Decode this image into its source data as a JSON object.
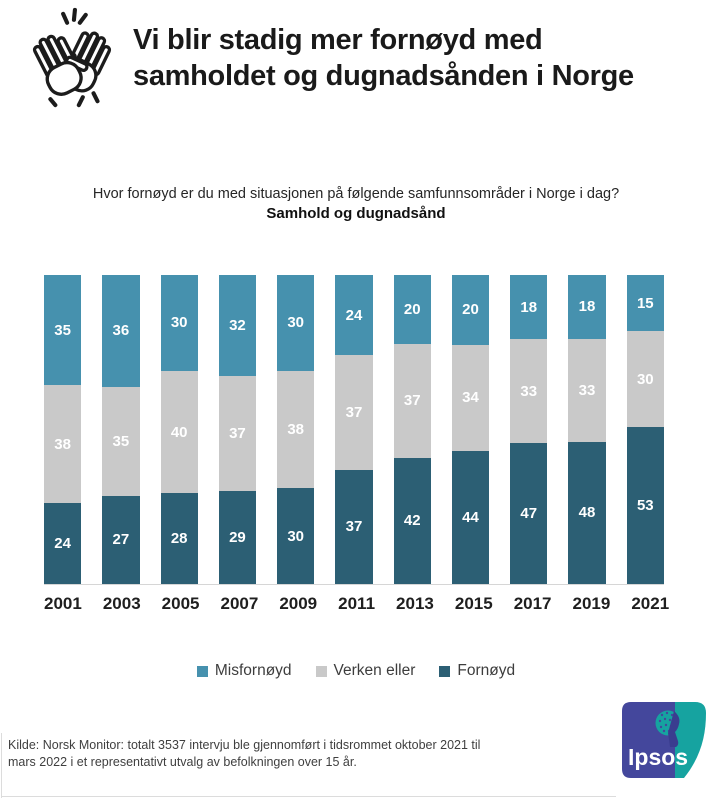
{
  "header": {
    "icon": "high-five-icon",
    "title_line1": "Vi blir stadig mer fornøyd med",
    "title_line2": "samholdet og dugnadsånden i Norge"
  },
  "subtitle": {
    "question": "Hvor fornøyd er du med situasjonen på følgende samfunnsområder i Norge i dag?",
    "topic": "Samhold og dugnadsånd"
  },
  "chart_data": {
    "type": "bar",
    "stacked": true,
    "orientation": "vertical",
    "unit": "percent",
    "categories": [
      "2001",
      "2003",
      "2005",
      "2007",
      "2009",
      "2011",
      "2013",
      "2015",
      "2017",
      "2019",
      "2021"
    ],
    "series": [
      {
        "name": "Misfornøyd",
        "stack_position": "top",
        "color": "#4691ae",
        "values": [
          35,
          36,
          30,
          32,
          30,
          24,
          20,
          20,
          18,
          18,
          15
        ]
      },
      {
        "name": "Verken eller",
        "stack_position": "middle",
        "color": "#c9c9c9",
        "values": [
          38,
          35,
          40,
          37,
          38,
          37,
          37,
          34,
          33,
          33,
          30
        ]
      },
      {
        "name": "Fornøyd",
        "stack_position": "bottom",
        "color": "#2c5f74",
        "values": [
          24,
          27,
          28,
          29,
          30,
          37,
          42,
          44,
          47,
          48,
          53
        ]
      }
    ],
    "value_labels": {
      "show": true,
      "color": "#ffffff"
    },
    "legend_position": "bottom",
    "y_axis": "hidden",
    "grid": false
  },
  "footer": {
    "source_line1": "Kilde: Norsk Monitor: totalt 3537 intervju ble gjennomført i tidsrommet oktober 2021 til",
    "source_line2": "mars 2022 i et representativt utvalg av befolkningen over 15 år."
  },
  "logo": {
    "brand": "Ipsos",
    "primary_color": "#44479c",
    "accent_color": "#16a3a0"
  }
}
